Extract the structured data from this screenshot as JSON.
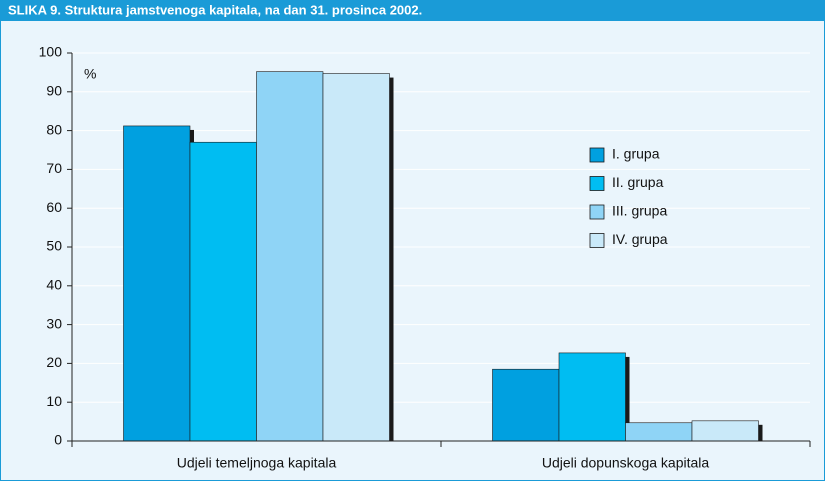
{
  "chart_data": {
    "type": "bar",
    "title": "SLIKA 9. Struktura jamstvenoga kapitala, na dan 31. prosinca 2002.",
    "y_unit": "%",
    "categories": [
      "Udjeli temeljnoga kapitala",
      "Udjeli dopunskoga kapitala"
    ],
    "series": [
      {
        "name": "I. grupa",
        "color": "#00a0e0",
        "values": [
          81.2,
          18.5
        ]
      },
      {
        "name": "II. grupa",
        "color": "#00bdf2",
        "values": [
          77.0,
          22.7
        ]
      },
      {
        "name": "III. grupa",
        "color": "#8fd4f6",
        "values": [
          95.2,
          4.7
        ]
      },
      {
        "name": "IV. grupa",
        "color": "#c9e9f9",
        "values": [
          94.7,
          5.2
        ]
      }
    ],
    "ylim": [
      0,
      100
    ],
    "yticks": [
      0,
      10,
      20,
      30,
      40,
      50,
      60,
      70,
      80,
      90,
      100
    ],
    "grid": true,
    "legend": "right"
  }
}
